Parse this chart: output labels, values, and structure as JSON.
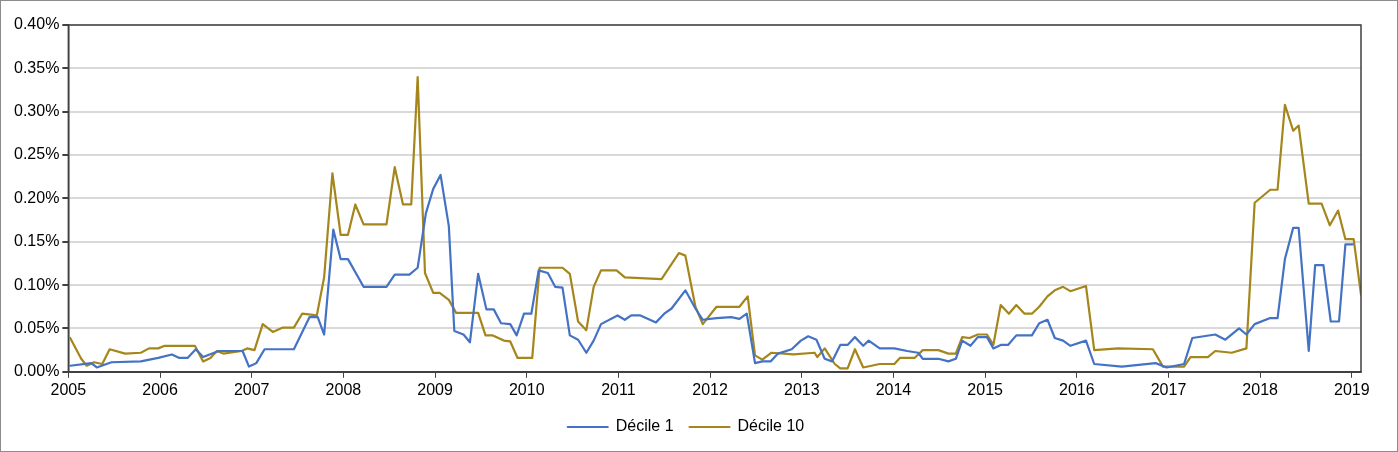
{
  "chart_data": {
    "type": "line",
    "xlim": [
      2005,
      2019.1
    ],
    "xticks": [
      2005,
      2006,
      2007,
      2008,
      2009,
      2010,
      2011,
      2012,
      2013,
      2014,
      2015,
      2016,
      2017,
      2018,
      2019
    ],
    "ylim": [
      0,
      0.4
    ],
    "yticks": [
      {
        "value": 0,
        "label": "0.00%"
      },
      {
        "value": 0.05,
        "label": "0.05%"
      },
      {
        "value": 0.1,
        "label": "0.10%"
      },
      {
        "value": 0.15,
        "label": "0.15%"
      },
      {
        "value": 0.2,
        "label": "0.20%"
      },
      {
        "value": 0.25,
        "label": "0.25%"
      },
      {
        "value": 0.3,
        "label": "0.30%"
      },
      {
        "value": 0.35,
        "label": "0.35%"
      },
      {
        "value": 0.4,
        "label": "0.40%"
      }
    ],
    "grid": "y",
    "legend": "bottom",
    "marker": "none",
    "line_style": "solid",
    "series": [
      {
        "name": "Décile 1",
        "color": "#4472c4",
        "x": [
          2005.02,
          2005.25,
          2005.31,
          2005.47,
          2005.79,
          2005.98,
          2006.13,
          2006.21,
          2006.3,
          2006.39,
          2006.47,
          2006.64,
          2006.9,
          2006.97,
          2007.05,
          2007.14,
          2007.46,
          2007.63,
          2007.72,
          2007.79,
          2007.89,
          2007.97,
          2008.05,
          2008.22,
          2008.47,
          2008.56,
          2008.72,
          2008.81,
          2008.9,
          2008.98,
          2009.06,
          2009.15,
          2009.21,
          2009.31,
          2009.38,
          2009.47,
          2009.56,
          2009.64,
          2009.72,
          2009.82,
          2009.89,
          2009.97,
          2010.05,
          2010.13,
          2010.23,
          2010.31,
          2010.39,
          2010.47,
          2010.56,
          2010.65,
          2010.73,
          2010.81,
          2010.99,
          2011.07,
          2011.14,
          2011.24,
          2011.41,
          2011.5,
          2011.58,
          2011.73,
          2011.84,
          2011.92,
          2012.07,
          2012.23,
          2012.32,
          2012.4,
          2012.49,
          2012.57,
          2012.66,
          2012.74,
          2012.89,
          2012.99,
          2013.07,
          2013.16,
          2013.25,
          2013.33,
          2013.42,
          2013.5,
          2013.58,
          2013.67,
          2013.73,
          2013.85,
          2014.01,
          2014.15,
          2014.27,
          2014.32,
          2014.49,
          2014.6,
          2014.68,
          2014.75,
          2014.84,
          2014.92,
          2015.02,
          2015.09,
          2015.17,
          2015.25,
          2015.34,
          2015.51,
          2015.59,
          2015.68,
          2015.76,
          2015.85,
          2015.93,
          2016.1,
          2016.19,
          2016.49,
          2016.86,
          2016.98,
          2017.17,
          2017.26,
          2017.51,
          2017.62,
          2017.77,
          2017.85,
          2017.94,
          2018.11,
          2018.19,
          2018.27,
          2018.36,
          2018.42,
          2018.53,
          2018.6,
          2018.69,
          2018.77,
          2018.86,
          2018.93,
          2019.01
        ],
        "values": [
          0.007,
          0.01,
          0.005,
          0.011,
          0.012,
          0.016,
          0.02,
          0.016,
          0.016,
          0.026,
          0.017,
          0.024,
          0.024,
          0.006,
          0.01,
          0.026,
          0.026,
          0.063,
          0.063,
          0.043,
          0.164,
          0.13,
          0.13,
          0.098,
          0.098,
          0.112,
          0.112,
          0.12,
          0.183,
          0.211,
          0.227,
          0.168,
          0.047,
          0.043,
          0.034,
          0.113,
          0.072,
          0.072,
          0.056,
          0.055,
          0.042,
          0.067,
          0.067,
          0.117,
          0.114,
          0.098,
          0.097,
          0.042,
          0.037,
          0.022,
          0.036,
          0.055,
          0.065,
          0.06,
          0.065,
          0.065,
          0.057,
          0.067,
          0.073,
          0.094,
          0.073,
          0.06,
          0.062,
          0.063,
          0.061,
          0.067,
          0.01,
          0.012,
          0.012,
          0.021,
          0.026,
          0.036,
          0.041,
          0.037,
          0.015,
          0.012,
          0.031,
          0.031,
          0.04,
          0.03,
          0.036,
          0.027,
          0.027,
          0.024,
          0.022,
          0.015,
          0.015,
          0.012,
          0.015,
          0.036,
          0.03,
          0.04,
          0.04,
          0.027,
          0.031,
          0.031,
          0.042,
          0.042,
          0.056,
          0.06,
          0.039,
          0.036,
          0.03,
          0.036,
          0.009,
          0.006,
          0.01,
          0.005,
          0.009,
          0.039,
          0.043,
          0.037,
          0.05,
          0.043,
          0.055,
          0.062,
          0.062,
          0.13,
          0.166,
          0.166,
          0.024,
          0.123,
          0.123,
          0.058,
          0.058,
          0.147,
          0.147
        ]
      },
      {
        "name": "Décile 10",
        "color": "#a5861c",
        "x": [
          2005.02,
          2005.14,
          2005.2,
          2005.28,
          2005.37,
          2005.45,
          2005.62,
          2005.79,
          2005.88,
          2005.98,
          2006.05,
          2006.38,
          2006.47,
          2006.55,
          2006.62,
          2006.69,
          2006.89,
          2006.95,
          2007.03,
          2007.12,
          2007.23,
          2007.34,
          2007.46,
          2007.55,
          2007.71,
          2007.79,
          2007.88,
          2007.97,
          2008.05,
          2008.13,
          2008.22,
          2008.47,
          2008.56,
          2008.65,
          2008.74,
          2008.81,
          2008.89,
          2008.98,
          2009.05,
          2009.15,
          2009.23,
          2009.47,
          2009.55,
          2009.63,
          2009.75,
          2009.82,
          2009.9,
          2010.06,
          2010.14,
          2010.39,
          2010.47,
          2010.56,
          2010.65,
          2010.73,
          2010.81,
          2010.98,
          2011.07,
          2011.47,
          2011.66,
          2011.73,
          2011.84,
          2011.92,
          2012.07,
          2012.32,
          2012.41,
          2012.49,
          2012.57,
          2012.67,
          2012.91,
          2013.14,
          2013.17,
          2013.25,
          2013.36,
          2013.42,
          2013.5,
          2013.58,
          2013.67,
          2013.85,
          2014.01,
          2014.07,
          2014.23,
          2014.32,
          2014.49,
          2014.6,
          2014.68,
          2014.75,
          2014.83,
          2014.92,
          2015.02,
          2015.09,
          2015.17,
          2015.26,
          2015.34,
          2015.43,
          2015.51,
          2015.59,
          2015.68,
          2015.76,
          2015.85,
          2015.93,
          2016.1,
          2016.19,
          2016.45,
          2016.83,
          2016.94,
          2017.17,
          2017.24,
          2017.43,
          2017.51,
          2017.69,
          2017.85,
          2017.94,
          2018.11,
          2018.19,
          2018.27,
          2018.36,
          2018.42,
          2018.53,
          2018.67,
          2018.76,
          2018.85,
          2018.93,
          2019.02,
          2019.1
        ],
        "values": [
          0.039,
          0.015,
          0.007,
          0.011,
          0.009,
          0.026,
          0.021,
          0.022,
          0.027,
          0.027,
          0.03,
          0.03,
          0.012,
          0.016,
          0.024,
          0.021,
          0.024,
          0.027,
          0.025,
          0.055,
          0.046,
          0.051,
          0.051,
          0.067,
          0.065,
          0.109,
          0.229,
          0.158,
          0.158,
          0.193,
          0.17,
          0.17,
          0.236,
          0.193,
          0.193,
          0.34,
          0.114,
          0.091,
          0.091,
          0.083,
          0.068,
          0.068,
          0.042,
          0.042,
          0.036,
          0.035,
          0.016,
          0.016,
          0.12,
          0.12,
          0.113,
          0.058,
          0.048,
          0.098,
          0.117,
          0.117,
          0.109,
          0.107,
          0.137,
          0.134,
          0.075,
          0.055,
          0.075,
          0.075,
          0.087,
          0.019,
          0.014,
          0.022,
          0.02,
          0.022,
          0.017,
          0.027,
          0.009,
          0.004,
          0.004,
          0.026,
          0.005,
          0.009,
          0.009,
          0.016,
          0.016,
          0.025,
          0.025,
          0.021,
          0.021,
          0.04,
          0.039,
          0.043,
          0.043,
          0.031,
          0.077,
          0.067,
          0.077,
          0.067,
          0.067,
          0.075,
          0.087,
          0.094,
          0.098,
          0.093,
          0.099,
          0.025,
          0.027,
          0.026,
          0.006,
          0.006,
          0.017,
          0.017,
          0.024,
          0.022,
          0.027,
          0.195,
          0.21,
          0.21,
          0.308,
          0.278,
          0.284,
          0.194,
          0.194,
          0.169,
          0.186,
          0.153,
          0.153,
          0.089
        ]
      }
    ]
  }
}
